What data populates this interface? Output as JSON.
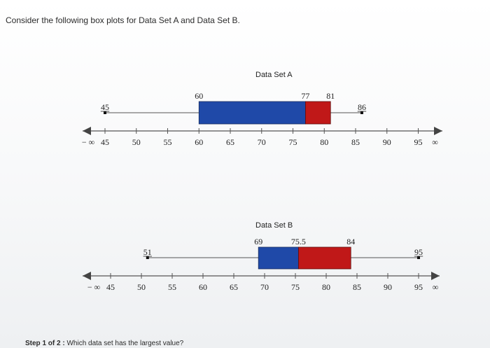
{
  "question_text": "Consider the following box plots for Data Set A and Data Set B.",
  "step": {
    "label": "Step 1 of 2 :",
    "question": "Which data set has the largest value?"
  },
  "axis_labels": {
    "neg_inf": "− ∞",
    "pos_inf": "∞"
  },
  "colors": {
    "blue": "#1f49a8",
    "red": "#c01818",
    "line": "#555555"
  },
  "chart_data": [
    {
      "type": "boxplot",
      "title": "Data Set A",
      "min": 45,
      "q1": 60,
      "median": 77,
      "q3": 81,
      "max": 86,
      "labels": {
        "min": "45",
        "q1": "60",
        "median": "77",
        "q3": "81",
        "max": "86"
      },
      "ticks": [
        45,
        50,
        55,
        60,
        65,
        70,
        75,
        80,
        85,
        90,
        95
      ]
    },
    {
      "type": "boxplot",
      "title": "Data Set B",
      "min": 51,
      "q1": 69,
      "median": 75.5,
      "q3": 84,
      "max": 95,
      "labels": {
        "min": "51",
        "q1": "69",
        "median": "75.5",
        "q3": "84",
        "max": "95"
      },
      "ticks": [
        45,
        50,
        55,
        60,
        65,
        70,
        75,
        80,
        85,
        90,
        95
      ]
    }
  ]
}
